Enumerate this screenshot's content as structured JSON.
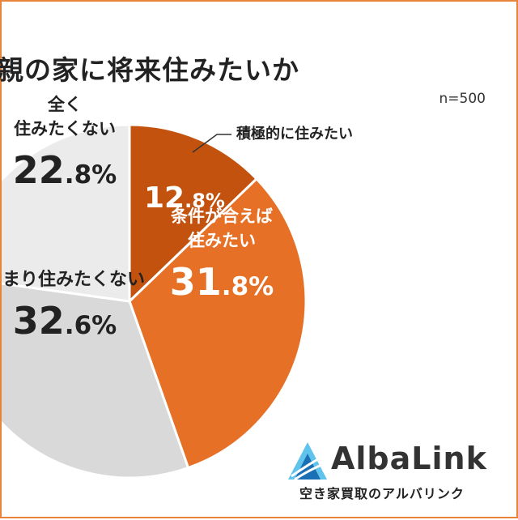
{
  "chart_data": {
    "type": "pie",
    "title": "親の家に将来住みたいか",
    "sample_size": "n=500",
    "slices": [
      {
        "label": "積極的に住みたい",
        "value": 12.8,
        "display_int": "12",
        "display_dec": ".8%",
        "color": "#c4520f"
      },
      {
        "label": "条件が合えば\n住みたい",
        "value": 31.8,
        "display_int": "31",
        "display_dec": ".8%",
        "color": "#e67025"
      },
      {
        "label": "あまり住みたくない",
        "value": 32.6,
        "display_int": "32",
        "display_dec": ".6%",
        "color": "#d9d9d9"
      },
      {
        "label": "全く\n住みたくない",
        "value": 22.8,
        "display_int": "22",
        "display_dec": ".8%",
        "color": "#ebebeb"
      }
    ],
    "start_angle_deg": 0,
    "direction": "clockwise"
  },
  "brand": {
    "name": "AlbaLink",
    "tagline": "空き家買取のアルバリンク",
    "logo_icon": "triangle-logo-icon",
    "colors": {
      "light": "#5fc3ec",
      "dark": "#1a6fb5",
      "border": "#e8833a"
    }
  }
}
